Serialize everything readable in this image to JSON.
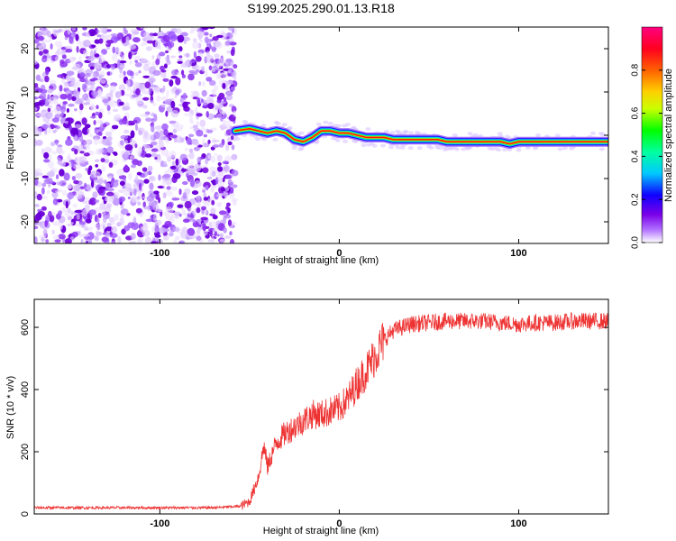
{
  "title": "S199.2025.290.01.13.R18",
  "chart_data": [
    {
      "type": "heatmap",
      "name": "spectrogram",
      "xlabel": "Height of straight line (km)",
      "ylabel": "Frequency (Hz)",
      "xlim": [
        -170,
        150
      ],
      "ylim": [
        -25,
        25
      ],
      "xticks": [
        -100,
        0,
        100
      ],
      "yticks": [
        -20,
        -10,
        0,
        10,
        20
      ],
      "noise_region": {
        "x_range": [
          -170,
          -58
        ],
        "freq_range": [
          -25,
          25
        ]
      },
      "signal_ridge": {
        "x": [
          -58,
          -50,
          -45,
          -40,
          -35,
          -30,
          -25,
          -20,
          -15,
          -10,
          -5,
          0,
          5,
          10,
          15,
          20,
          25,
          30,
          35,
          40,
          45,
          50,
          55,
          60,
          65,
          70,
          75,
          80,
          85,
          90,
          95,
          100,
          110,
          120,
          130,
          140,
          150
        ],
        "freq": [
          1.0,
          1.5,
          1.0,
          0.5,
          1.0,
          0.5,
          -1.0,
          -1.5,
          -0.5,
          1.0,
          1.0,
          0.5,
          0.5,
          0.0,
          -0.5,
          -0.5,
          -0.5,
          -1.0,
          -1.0,
          -1.0,
          -1.0,
          -1.0,
          -1.0,
          -1.5,
          -1.5,
          -1.5,
          -1.5,
          -1.5,
          -1.5,
          -1.5,
          -2.0,
          -1.5,
          -1.5,
          -1.5,
          -1.5,
          -1.5,
          -1.5
        ]
      },
      "colorbar": {
        "label": "Normalized spectral amplitude",
        "range": [
          0,
          1
        ],
        "ticks": [
          "0.0",
          "0.2",
          "0.4",
          "0.6",
          "0.8"
        ],
        "colors": [
          "#ffffff",
          "#9a00ff",
          "#0000ff",
          "#00c8ff",
          "#00ff00",
          "#ffff00",
          "#ff8000",
          "#ff0000",
          "#ff0080"
        ]
      }
    },
    {
      "type": "line",
      "name": "snr",
      "xlabel": "Height of straight line (km)",
      "ylabel": "SNR (10 * v/v)",
      "xlim": [
        -170,
        150
      ],
      "ylim": [
        0,
        690
      ],
      "xticks": [
        -100,
        0,
        100
      ],
      "yticks": [
        0,
        200,
        400,
        600
      ],
      "color": "#ee3333",
      "series": [
        {
          "name": "SNR",
          "x": [
            -170,
            -150,
            -130,
            -110,
            -90,
            -70,
            -55,
            -50,
            -45,
            -42,
            -40,
            -37,
            -35,
            -30,
            -25,
            -20,
            -15,
            -10,
            -5,
            0,
            5,
            10,
            15,
            20,
            25,
            30,
            35,
            40,
            50,
            60,
            70,
            80,
            90,
            100,
            110,
            120,
            130,
            140,
            150
          ],
          "values": [
            20,
            20,
            20,
            20,
            20,
            20,
            25,
            40,
            120,
            220,
            150,
            200,
            230,
            260,
            280,
            300,
            320,
            320,
            330,
            340,
            370,
            420,
            460,
            510,
            560,
            590,
            600,
            610,
            615,
            620,
            620,
            620,
            615,
            610,
            615,
            615,
            620,
            620,
            620
          ]
        }
      ]
    }
  ]
}
